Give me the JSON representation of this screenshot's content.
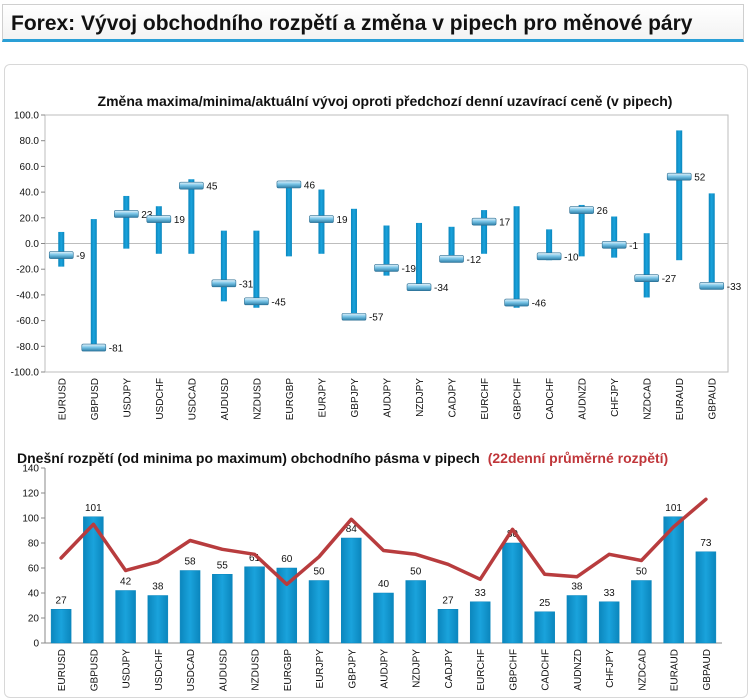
{
  "page_title": "Forex: Vývoj obchodního rozpětí a změna v pipech pro měnové páry",
  "colors": {
    "bar": "#1aa3dc",
    "bar_dark": "#0b86bd",
    "avg_line": "#b83c3e",
    "title_accent": "#2a9fd6"
  },
  "chart_data": [
    {
      "type": "range",
      "title": "Změna maxima/minima/aktuální vývoj oproti předchozí denní uzavírací ceně (v pipech)",
      "ylim": [
        -100,
        100
      ],
      "yticks": [
        "100.0",
        "80.0",
        "60.0",
        "40.0",
        "20.0",
        "0.0",
        "-20.0",
        "-40.0",
        "-60.0",
        "-80.0",
        "-100.0"
      ],
      "categories": [
        "EURUSD",
        "GBPUSD",
        "USDJPY",
        "USDCHF",
        "USDCAD",
        "AUDUSD",
        "NZDUSD",
        "EURGBP",
        "EURJPY",
        "GBPJPY",
        "AUDJPY",
        "NZDJPY",
        "CADJPY",
        "EURCHF",
        "GBPCHF",
        "CADCHF",
        "AUDNZD",
        "CHFJPY",
        "NZDCAD",
        "EURAUD",
        "GBPAUD"
      ],
      "high": [
        9,
        19,
        37,
        29,
        50,
        10,
        10,
        49,
        42,
        27,
        14,
        16,
        13,
        26,
        29,
        11,
        30,
        21,
        8,
        88,
        39
      ],
      "low": [
        -18,
        -81,
        -4,
        -8,
        -8,
        -45,
        -50,
        -10,
        -8,
        -57,
        -25,
        -34,
        -12,
        -8,
        -50,
        -13,
        -10,
        -11,
        -42,
        -13,
        -33
      ],
      "current": [
        -9,
        -81,
        23,
        19,
        45,
        -31,
        -45,
        46,
        19,
        -57,
        -19,
        -34,
        -12,
        17,
        -46,
        -10,
        26,
        -1,
        -27,
        52,
        -33
      ],
      "labels": [
        "-9",
        "-81",
        "23",
        "19",
        "45",
        "-31",
        "-45",
        "46",
        "19",
        "-57",
        "-19",
        "-34",
        "-12",
        "17",
        "-46",
        "-10",
        "26",
        "-1",
        "-27",
        "52",
        "-33"
      ]
    },
    {
      "type": "bar",
      "title": "Dnešní rozpětí (od minima po maximum) obchodního pásma v pipech",
      "title_red": "(22denní průměrné rozpětí)",
      "ylim": [
        0,
        140
      ],
      "yticks": [
        "140",
        "120",
        "100",
        "80",
        "60",
        "40",
        "20",
        "0"
      ],
      "categories": [
        "EURUSD",
        "GBPUSD",
        "USDJPY",
        "USDCHF",
        "USDCAD",
        "AUDUSD",
        "NZDUSD",
        "EURGBP",
        "EURJPY",
        "GBPJPY",
        "AUDJPY",
        "NZDJPY",
        "CADJPY",
        "EURCHF",
        "GBPCHF",
        "CADCHF",
        "AUDNZD",
        "CHFJPY",
        "NZDCAD",
        "EURAUD",
        "GBPAUD"
      ],
      "values": [
        27,
        101,
        42,
        38,
        58,
        55,
        61,
        60,
        50,
        84,
        40,
        50,
        27,
        33,
        80,
        25,
        38,
        33,
        50,
        101,
        73
      ],
      "labels": [
        "27",
        "101",
        "42",
        "38",
        "58",
        "55",
        "61",
        "60",
        "50",
        "84",
        "40",
        "50",
        "27",
        "33",
        "80",
        "25",
        "38",
        "33",
        "50",
        "101",
        "73"
      ],
      "avg_22d": [
        68,
        95,
        58,
        65,
        82,
        75,
        71,
        47,
        69,
        99,
        74,
        71,
        63,
        51,
        91,
        55,
        53,
        71,
        66,
        93,
        115
      ]
    }
  ]
}
